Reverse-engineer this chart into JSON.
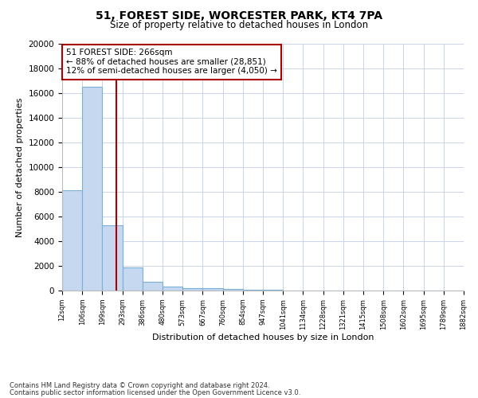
{
  "title1": "51, FOREST SIDE, WORCESTER PARK, KT4 7PA",
  "title2": "Size of property relative to detached houses in London",
  "xlabel": "Distribution of detached houses by size in London",
  "ylabel": "Number of detached properties",
  "bin_labels": [
    "12sqm",
    "106sqm",
    "199sqm",
    "293sqm",
    "386sqm",
    "480sqm",
    "573sqm",
    "667sqm",
    "760sqm",
    "854sqm",
    "947sqm",
    "1041sqm",
    "1134sqm",
    "1228sqm",
    "1321sqm",
    "1415sqm",
    "1508sqm",
    "1602sqm",
    "1695sqm",
    "1789sqm",
    "1882sqm"
  ],
  "bar_values": [
    8100,
    16500,
    5300,
    1850,
    700,
    300,
    225,
    175,
    150,
    80,
    40,
    20,
    15,
    10,
    8,
    5,
    4,
    3,
    3,
    2
  ],
  "bar_color": "#c5d8f0",
  "bar_edge_color": "#7bafd4",
  "annotation_text": "51 FOREST SIDE: 266sqm\n← 88% of detached houses are smaller (28,851)\n12% of semi-detached houses are larger (4,050) →",
  "annotation_box_color": "#ffffff",
  "annotation_border_color": "#aa0000",
  "ylim": [
    0,
    20000
  ],
  "yticks": [
    0,
    2000,
    4000,
    6000,
    8000,
    10000,
    12000,
    14000,
    16000,
    18000,
    20000
  ],
  "footer1": "Contains HM Land Registry data © Crown copyright and database right 2024.",
  "footer2": "Contains public sector information licensed under the Open Government Licence v3.0.",
  "bg_color": "#ffffff",
  "grid_color": "#c8d4e8"
}
